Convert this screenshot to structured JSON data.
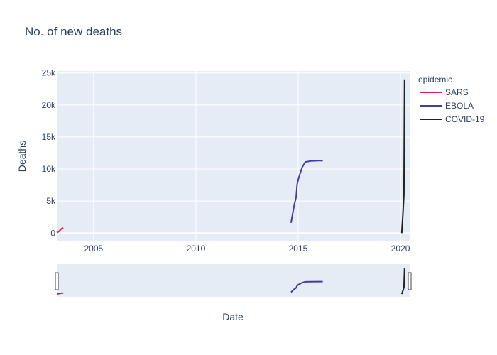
{
  "chart_data": {
    "type": "line",
    "title": "No. of new deaths",
    "xlabel": "Date",
    "ylabel": "Deaths",
    "xlim": [
      2003.2,
      2020.45
    ],
    "ylim": [
      -1300,
      25300
    ],
    "x_ticks": [
      2005,
      2010,
      2015,
      2020
    ],
    "x_tick_labels": [
      "2005",
      "2010",
      "2015",
      "2020"
    ],
    "y_ticks": [
      0,
      5000,
      10000,
      15000,
      20000,
      25000
    ],
    "y_tick_labels": [
      "0",
      "5k",
      "10k",
      "15k",
      "20k",
      "25k"
    ],
    "grid": true,
    "legend": {
      "title": "epidemic",
      "position": "right"
    },
    "rangeslider": true,
    "series": [
      {
        "name": "SARS",
        "color": "#e6194b",
        "x": [
          2003.2,
          2003.28,
          2003.36,
          2003.44,
          2003.52
        ],
        "y": [
          100,
          200,
          450,
          700,
          800
        ]
      },
      {
        "name": "EBOLA",
        "color": "#3f3fa0",
        "x": [
          2014.65,
          2014.82,
          2014.9,
          2014.95,
          2015.02,
          2015.2,
          2015.35,
          2015.6,
          2016.0,
          2016.2
        ],
        "y": [
          1600,
          4600,
          5600,
          7600,
          8600,
          10300,
          11100,
          11250,
          11300,
          11310
        ]
      },
      {
        "name": "COVID-19",
        "color": "#222222",
        "x": [
          2020.06,
          2020.12,
          2020.17,
          2020.2
        ],
        "y": [
          0,
          3000,
          6000,
          24000
        ]
      }
    ]
  }
}
